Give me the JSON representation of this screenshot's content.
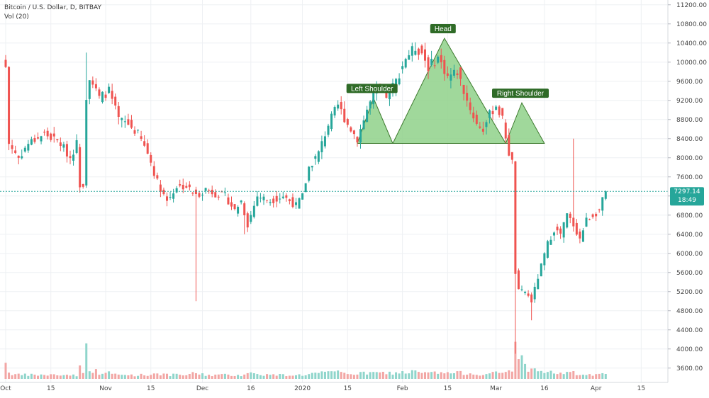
{
  "header": {
    "symbol_line": "Bitcoin / U.S. Dollar, D, BITBAY",
    "volume_line": "Vol (20)"
  },
  "colors": {
    "up": "#26a69a",
    "down": "#ef5350",
    "up_volume": "#8fd5cb",
    "down_volume": "#f2a6a4",
    "pattern_fill": "#8fd18a",
    "pattern_stroke": "#3d7a2e",
    "callout_bg": "#2f6b27",
    "price_tag": "#26a69a",
    "grid": "#eef0f3"
  },
  "chart_data": {
    "type": "candlestick",
    "ylim": [
      3300,
      11300
    ],
    "y_ticks": [
      3600,
      4000,
      4400,
      4800,
      5200,
      5600,
      6000,
      6400,
      6800,
      7200,
      7600,
      8000,
      8400,
      8800,
      9200,
      9600,
      10000,
      10400,
      10800,
      11200
    ],
    "y_tick_labels": [
      "3600.00",
      "4000.00",
      "4400.00",
      "4800.00",
      "5200.00",
      "5600.00",
      "6000.00",
      "6400.00",
      "6800.00",
      "7200.00",
      "7600.00",
      "8000.00",
      "8400.00",
      "8800.00",
      "9200.00",
      "9600.00",
      "10000.00",
      "10400.00",
      "10800.00",
      "11200.00"
    ],
    "x_ticks": [
      {
        "label": "Oct",
        "day": 0
      },
      {
        "label": "15",
        "day": 14
      },
      {
        "label": "Nov",
        "day": 31
      },
      {
        "label": "15",
        "day": 45
      },
      {
        "label": "Dec",
        "day": 61
      },
      {
        "label": "16",
        "day": 76
      },
      {
        "label": "2020",
        "day": 92
      },
      {
        "label": "15",
        "day": 106
      },
      {
        "label": "Feb",
        "day": 123
      },
      {
        "label": "15",
        "day": 137
      },
      {
        "label": "Mar",
        "day": 152
      },
      {
        "label": "16",
        "day": 167
      },
      {
        "label": "Apr",
        "day": 183
      },
      {
        "label": "15",
        "day": 197
      }
    ],
    "last_price": 7297.14,
    "last_price_label": "7297.14",
    "countdown_label": "18:49",
    "anchors": [
      {
        "day": 0,
        "price": 9900,
        "vol": 1.0
      },
      {
        "day": 1,
        "price": 8300,
        "vol": 0.3
      },
      {
        "day": 4,
        "price": 8000,
        "vol": 0.2
      },
      {
        "day": 7,
        "price": 8300,
        "vol": 0.2
      },
      {
        "day": 12,
        "price": 8500,
        "vol": 0.2
      },
      {
        "day": 17,
        "price": 8300,
        "vol": 0.2
      },
      {
        "day": 20,
        "price": 8000,
        "vol": 0.2
      },
      {
        "day": 22,
        "price": 8300,
        "vol": 0.2
      },
      {
        "day": 23,
        "price": 7450,
        "vol": 0.55
      },
      {
        "day": 24,
        "price": 7450,
        "vol": 0.3
      },
      {
        "day": 25,
        "price": 9300,
        "vol": 1.5
      },
      {
        "day": 26,
        "price": 9700,
        "vol": 0.55
      },
      {
        "day": 29,
        "price": 9250,
        "vol": 0.3
      },
      {
        "day": 32,
        "price": 9400,
        "vol": 0.3
      },
      {
        "day": 35,
        "price": 8800,
        "vol": 0.2
      },
      {
        "day": 38,
        "price": 8700,
        "vol": 0.2
      },
      {
        "day": 41,
        "price": 8500,
        "vol": 0.2
      },
      {
        "day": 44,
        "price": 8100,
        "vol": 0.2
      },
      {
        "day": 47,
        "price": 7500,
        "vol": 0.3
      },
      {
        "day": 50,
        "price": 7100,
        "vol": 0.2
      },
      {
        "day": 53,
        "price": 7400,
        "vol": 0.2
      },
      {
        "day": 56,
        "price": 7400,
        "vol": 0.2
      },
      {
        "day": 59,
        "price": 7200,
        "vol": 0.3
      },
      {
        "day": 62,
        "price": 7350,
        "vol": 0.2
      },
      {
        "day": 65,
        "price": 7250,
        "vol": 0.2
      },
      {
        "day": 68,
        "price": 7200,
        "vol": 0.2
      },
      {
        "day": 71,
        "price": 6900,
        "vol": 0.2
      },
      {
        "day": 73,
        "price": 7100,
        "vol": 0.2
      },
      {
        "day": 75,
        "price": 6600,
        "vol": 0.3
      },
      {
        "day": 78,
        "price": 7200,
        "vol": 0.25
      },
      {
        "day": 82,
        "price": 7100,
        "vol": 0.2
      },
      {
        "day": 86,
        "price": 7200,
        "vol": 0.2
      },
      {
        "day": 90,
        "price": 7000,
        "vol": 0.2
      },
      {
        "day": 92,
        "price": 7200,
        "vol": 0.2
      },
      {
        "day": 94,
        "price": 7800,
        "vol": 0.25
      },
      {
        "day": 97,
        "price": 8100,
        "vol": 0.3
      },
      {
        "day": 100,
        "price": 8700,
        "vol": 0.3
      },
      {
        "day": 103,
        "price": 9100,
        "vol": 0.35
      },
      {
        "day": 106,
        "price": 8700,
        "vol": 0.3
      },
      {
        "day": 109,
        "price": 8400,
        "vol": 0.25
      },
      {
        "day": 112,
        "price": 9000,
        "vol": 0.3
      },
      {
        "day": 115,
        "price": 9450,
        "vol": 0.3
      },
      {
        "day": 118,
        "price": 9300,
        "vol": 0.3
      },
      {
        "day": 121,
        "price": 9600,
        "vol": 0.3
      },
      {
        "day": 124,
        "price": 10100,
        "vol": 0.35
      },
      {
        "day": 127,
        "price": 10300,
        "vol": 0.35
      },
      {
        "day": 129,
        "price": 10200,
        "vol": 0.3
      },
      {
        "day": 131,
        "price": 9900,
        "vol": 0.3
      },
      {
        "day": 134,
        "price": 10100,
        "vol": 0.3
      },
      {
        "day": 137,
        "price": 9700,
        "vol": 0.3
      },
      {
        "day": 140,
        "price": 9800,
        "vol": 0.3
      },
      {
        "day": 143,
        "price": 9200,
        "vol": 0.3
      },
      {
        "day": 146,
        "price": 8700,
        "vol": 0.25
      },
      {
        "day": 148,
        "price": 8600,
        "vol": 0.25
      },
      {
        "day": 150,
        "price": 8900,
        "vol": 0.25
      },
      {
        "day": 152,
        "price": 9100,
        "vol": 0.3
      },
      {
        "day": 154,
        "price": 8800,
        "vol": 0.3
      },
      {
        "day": 156,
        "price": 8100,
        "vol": 0.4
      },
      {
        "day": 157,
        "price": 7900,
        "vol": 0.5
      },
      {
        "day": 158,
        "price": 5600,
        "vol": 1.9
      },
      {
        "day": 159,
        "price": 5200,
        "vol": 1.4
      },
      {
        "day": 161,
        "price": 5200,
        "vol": 0.6
      },
      {
        "day": 163,
        "price": 5000,
        "vol": 0.5
      },
      {
        "day": 165,
        "price": 5500,
        "vol": 0.4
      },
      {
        "day": 168,
        "price": 6200,
        "vol": 0.35
      },
      {
        "day": 170,
        "price": 6500,
        "vol": 0.3
      },
      {
        "day": 172,
        "price": 6400,
        "vol": 0.3
      },
      {
        "day": 174,
        "price": 6800,
        "vol": 0.3
      },
      {
        "day": 176,
        "price": 6600,
        "vol": 0.3
      },
      {
        "day": 178,
        "price": 6300,
        "vol": 0.2
      },
      {
        "day": 180,
        "price": 6700,
        "vol": 0.2
      },
      {
        "day": 182,
        "price": 6800,
        "vol": 0.2
      },
      {
        "day": 184,
        "price": 6900,
        "vol": 0.2
      },
      {
        "day": 186,
        "price": 7300,
        "vol": 0.25
      }
    ],
    "spikes": [
      {
        "day": 25,
        "high": 10200
      },
      {
        "day": 59,
        "low": 5000
      },
      {
        "day": 74,
        "low": 6400
      },
      {
        "day": 157,
        "high": 8000
      },
      {
        "day": 158,
        "low": 3900
      },
      {
        "day": 163,
        "low": 4600
      },
      {
        "day": 176,
        "high": 8400
      }
    ],
    "pattern": {
      "name": "head-and-shoulders",
      "labels": [
        "Left Shoulder",
        "Head",
        "Right Shoulder"
      ],
      "left_shoulder": {
        "points": [
          [
            109,
            8300
          ],
          [
            114,
            9250
          ],
          [
            120,
            8300
          ]
        ]
      },
      "head": {
        "points": [
          [
            120,
            8300
          ],
          [
            136,
            10500
          ],
          [
            155,
            8300
          ]
        ]
      },
      "right_shoulder": {
        "points": [
          [
            155,
            8300
          ],
          [
            160,
            9150
          ],
          [
            167,
            8300
          ]
        ]
      }
    }
  }
}
